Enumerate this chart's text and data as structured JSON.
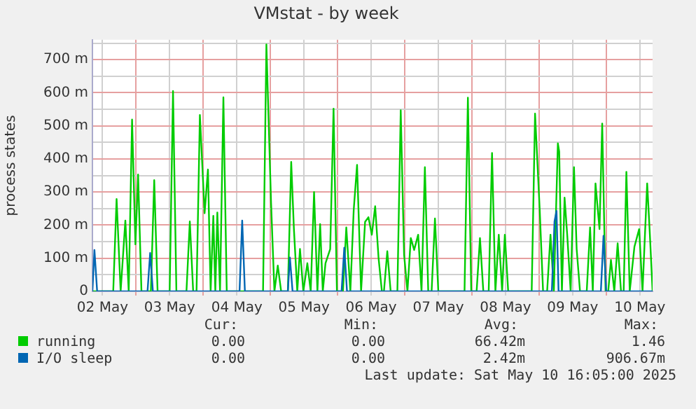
{
  "chart_data": {
    "type": "line",
    "title": "VMstat - by week",
    "ylabel": "process states",
    "xlim": [
      "2025-05-02T08:24",
      "2025-05-10T16:34"
    ],
    "xticks": [
      {
        "value": "2025-05-02T12:00",
        "label": "02 May"
      },
      {
        "value": "2025-05-03T00:00",
        "label": null
      },
      {
        "value": "2025-05-03T12:00",
        "label": "03 May"
      },
      {
        "value": "2025-05-04T00:00",
        "label": null
      },
      {
        "value": "2025-05-04T12:00",
        "label": "04 May"
      },
      {
        "value": "2025-05-05T00:00",
        "label": null
      },
      {
        "value": "2025-05-05T12:00",
        "label": "05 May"
      },
      {
        "value": "2025-05-06T00:00",
        "label": null
      },
      {
        "value": "2025-05-06T12:00",
        "label": "06 May"
      },
      {
        "value": "2025-05-07T00:00",
        "label": null
      },
      {
        "value": "2025-05-07T12:00",
        "label": "07 May"
      },
      {
        "value": "2025-05-08T00:00",
        "label": null
      },
      {
        "value": "2025-05-08T12:00",
        "label": "08 May"
      },
      {
        "value": "2025-05-09T00:00",
        "label": null
      },
      {
        "value": "2025-05-09T12:00",
        "label": "09 May"
      },
      {
        "value": "2025-05-10T00:00",
        "label": null
      },
      {
        "value": "2025-05-10T12:00",
        "label": "10 May"
      }
    ],
    "ylim": [
      0,
      760
    ],
    "yticks": [
      {
        "value": 0,
        "label": "0"
      },
      {
        "value": 50,
        "label": null
      },
      {
        "value": 100,
        "label": "100 m"
      },
      {
        "value": 150,
        "label": null
      },
      {
        "value": 200,
        "label": "200 m"
      },
      {
        "value": 250,
        "label": null
      },
      {
        "value": 300,
        "label": "300 m"
      },
      {
        "value": 350,
        "label": null
      },
      {
        "value": 400,
        "label": "400 m"
      },
      {
        "value": 450,
        "label": null
      },
      {
        "value": 500,
        "label": "500 m"
      },
      {
        "value": 550,
        "label": null
      },
      {
        "value": 600,
        "label": "600 m"
      },
      {
        "value": 650,
        "label": null
      },
      {
        "value": 700,
        "label": "700 m"
      },
      {
        "value": 750,
        "label": null
      }
    ],
    "grid": true,
    "legend": "bottom",
    "marker": "none",
    "line_style": "solid",
    "series": [
      {
        "name": "running",
        "color": "#00cc00",
        "x": [
          "2025-05-02T08:24",
          "2025-05-02T15:50",
          "2025-05-02T17:02",
          "2025-05-02T18:29",
          "2025-05-02T20:10",
          "2025-05-02T21:22",
          "2025-05-02T22:34",
          "2025-05-02T23:46",
          "2025-05-03T00:43",
          "2025-05-03T01:55",
          "2025-05-03T05:17",
          "2025-05-03T06:29",
          "2025-05-03T07:41",
          "2025-05-03T12:00",
          "2025-05-03T13:12",
          "2025-05-03T14:24",
          "2025-05-03T18:00",
          "2025-05-03T19:12",
          "2025-05-03T20:24",
          "2025-05-03T21:36",
          "2025-05-03T22:48",
          "2025-05-04T00:29",
          "2025-05-04T01:41",
          "2025-05-04T02:38",
          "2025-05-04T03:36",
          "2025-05-04T04:19",
          "2025-05-04T05:02",
          "2025-05-04T06:00",
          "2025-05-04T07:12",
          "2025-05-04T08:24",
          "2025-05-04T21:22",
          "2025-05-04T22:34",
          "2025-05-05T00:14",
          "2025-05-05T01:26",
          "2025-05-05T02:38",
          "2025-05-05T03:50",
          "2025-05-05T06:14",
          "2025-05-05T07:26",
          "2025-05-05T08:24",
          "2025-05-05T09:36",
          "2025-05-05T10:34",
          "2025-05-05T11:46",
          "2025-05-05T13:12",
          "2025-05-05T14:24",
          "2025-05-05T15:36",
          "2025-05-05T16:48",
          "2025-05-05T17:46",
          "2025-05-05T18:43",
          "2025-05-05T19:41",
          "2025-05-05T21:22",
          "2025-05-05T22:34",
          "2025-05-05T23:46",
          "2025-05-06T01:55",
          "2025-05-06T03:07",
          "2025-05-06T04:34",
          "2025-05-06T05:46",
          "2025-05-06T06:58",
          "2025-05-06T08:24",
          "2025-05-06T09:50",
          "2025-05-06T11:02",
          "2025-05-06T12:14",
          "2025-05-06T13:26",
          "2025-05-06T14:38",
          "2025-05-06T15:50",
          "2025-05-06T16:34",
          "2025-05-06T17:46",
          "2025-05-06T18:58",
          "2025-05-06T21:22",
          "2025-05-06T22:34",
          "2025-05-06T23:46",
          "2025-05-07T00:58",
          "2025-05-07T02:10",
          "2025-05-07T03:22",
          "2025-05-07T04:48",
          "2025-05-07T06:00",
          "2025-05-07T07:12",
          "2025-05-07T08:24",
          "2025-05-07T09:36",
          "2025-05-07T10:48",
          "2025-05-07T12:00",
          "2025-05-07T21:22",
          "2025-05-07T22:34",
          "2025-05-07T23:46",
          "2025-05-08T01:41",
          "2025-05-08T02:53",
          "2025-05-08T04:05",
          "2025-05-08T06:00",
          "2025-05-08T07:12",
          "2025-05-08T08:24",
          "2025-05-08T09:36",
          "2025-05-08T10:48",
          "2025-05-08T11:46",
          "2025-05-08T12:58",
          "2025-05-08T21:22",
          "2025-05-08T22:34",
          "2025-05-09T00:14",
          "2025-05-09T01:26",
          "2025-05-09T02:53",
          "2025-05-09T04:05",
          "2025-05-09T05:17",
          "2025-05-09T06:43",
          "2025-05-09T07:12",
          "2025-05-09T08:10",
          "2025-05-09T09:07",
          "2025-05-09T10:05",
          "2025-05-09T11:17",
          "2025-05-09T12:29",
          "2025-05-09T13:26",
          "2025-05-09T14:38",
          "2025-05-09T17:02",
          "2025-05-09T18:14",
          "2025-05-09T19:12",
          "2025-05-09T20:10",
          "2025-05-09T21:36",
          "2025-05-09T22:34",
          "2025-05-09T23:46",
          "2025-05-10T00:43",
          "2025-05-10T01:41",
          "2025-05-10T02:53",
          "2025-05-10T04:05",
          "2025-05-10T05:17",
          "2025-05-10T06:14",
          "2025-05-10T07:12",
          "2025-05-10T08:24",
          "2025-05-10T10:05",
          "2025-05-10T11:46",
          "2025-05-10T12:58",
          "2025-05-10T14:38",
          "2025-05-10T15:36",
          "2025-05-10T16:34"
        ],
        "values": [
          0,
          0,
          279,
          0,
          214,
          0,
          519,
          142,
          353,
          0,
          0,
          336,
          0,
          0,
          605,
          0,
          0,
          211,
          0,
          0,
          533,
          236,
          368,
          0,
          228,
          0,
          238,
          0,
          586,
          0,
          0,
          746,
          267,
          0,
          78,
          0,
          0,
          391,
          188,
          0,
          128,
          0,
          85,
          0,
          300,
          0,
          203,
          0,
          85,
          128,
          552,
          0,
          0,
          193,
          0,
          246,
          382,
          0,
          210,
          224,
          171,
          257,
          102,
          0,
          0,
          121,
          0,
          0,
          547,
          111,
          0,
          161,
          125,
          171,
          0,
          375,
          0,
          0,
          220,
          0,
          0,
          585,
          0,
          0,
          161,
          0,
          0,
          418,
          0,
          171,
          0,
          171,
          0,
          0,
          537,
          246,
          0,
          0,
          171,
          0,
          447,
          422,
          0,
          283,
          168,
          0,
          375,
          128,
          0,
          0,
          193,
          0,
          326,
          188,
          507,
          0,
          0,
          95,
          0,
          145,
          0,
          0,
          361,
          0,
          135,
          188,
          0,
          326,
          171,
          0
        ]
      },
      {
        "name": "I/O sleep",
        "color": "#0066b3",
        "x": [
          "2025-05-02T08:24",
          "2025-05-02T09:07",
          "2025-05-02T10:05",
          "2025-05-03T04:05",
          "2025-05-03T05:02",
          "2025-05-03T06:00",
          "2025-05-04T12:58",
          "2025-05-04T13:55",
          "2025-05-04T14:53",
          "2025-05-05T06:14",
          "2025-05-05T06:58",
          "2025-05-05T07:55",
          "2025-05-06T01:26",
          "2025-05-06T02:24",
          "2025-05-06T03:22",
          "2025-05-09T04:34",
          "2025-05-09T05:31",
          "2025-05-09T06:14",
          "2025-05-09T06:58",
          "2025-05-09T22:05",
          "2025-05-09T23:02",
          "2025-05-10T00:00",
          "2025-05-10T16:34"
        ],
        "values": [
          0,
          125,
          0,
          0,
          116,
          0,
          0,
          214,
          0,
          0,
          102,
          0,
          0,
          132,
          0,
          0,
          211,
          243,
          0,
          0,
          168,
          0,
          0
        ]
      }
    ],
    "annotations": [
      "Cur:",
      "Min:",
      "Avg:",
      "Max:",
      "0.00",
      "0.00",
      "66.42m",
      "1.46",
      "0.00",
      "0.00",
      "2.42m",
      "906.67m",
      "Last update: Sat May 10 16:05:00 2025"
    ]
  }
}
